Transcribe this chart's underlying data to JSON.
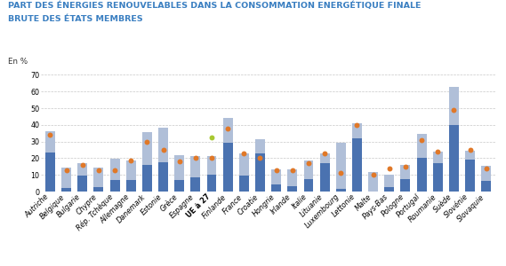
{
  "title_line1": "PART DES ÉNERGIES RENOUVELABLES DANS LA CONSOMMATION ENERGÉTIQUE FINALE",
  "title_line2": "BRUTE DES ÉTATS MEMBRES",
  "ylabel": "En %",
  "categories": [
    "Autriche",
    "Belgique",
    "Bulgarie",
    "Chypre",
    "Rép. Tchèque",
    "Allemagne",
    "Danemark",
    "Estonie",
    "Grèce",
    "Espagne",
    "UE à 27",
    "Finlande",
    "France",
    "Croatie",
    "Hongrie",
    "Irlande",
    "Italie",
    "Lituanie",
    "Luxembourg",
    "Lettonie",
    "Malte",
    "Pays-Bas",
    "Pologne",
    "Portugal",
    "Roumanie",
    "Suède",
    "Slovénie",
    "Slovaquie"
  ],
  "values_2005": [
    23.3,
    2.2,
    9.4,
    2.9,
    6.8,
    7.0,
    16.0,
    17.5,
    7.0,
    8.7,
    10.0,
    29.0,
    9.5,
    23.0,
    4.3,
    3.1,
    7.7,
    17.0,
    1.4,
    32.0,
    0.0,
    2.4,
    7.2,
    20.0,
    17.0,
    40.0,
    19.0,
    6.4
  ],
  "values_2021_extra": [
    13.0,
    12.0,
    7.5,
    11.2,
    13.0,
    11.5,
    19.5,
    21.0,
    15.0,
    12.5,
    11.5,
    15.0,
    13.5,
    8.5,
    9.0,
    10.0,
    11.0,
    6.0,
    28.0,
    9.0,
    11.5,
    7.5,
    9.0,
    14.5,
    7.0,
    23.0,
    5.5,
    9.0
  ],
  "values_obj2020": [
    34.0,
    13.0,
    16.0,
    13.0,
    13.0,
    18.5,
    30.0,
    25.0,
    18.0,
    20.0,
    20.0,
    38.0,
    23.0,
    20.0,
    13.0,
    13.0,
    17.0,
    23.0,
    11.0,
    40.0,
    10.0,
    14.0,
    15.0,
    31.0,
    24.0,
    49.0,
    25.0,
    14.0
  ],
  "values_obj2030_UE": [
    null,
    null,
    null,
    null,
    null,
    null,
    null,
    null,
    null,
    null,
    32.5,
    null,
    null,
    null,
    null,
    null,
    null,
    null,
    null,
    null,
    null,
    null,
    null,
    null,
    null,
    null,
    null,
    null
  ],
  "color_2005": "#4a72b0",
  "color_2021": "#b0bfd8",
  "color_obj2020": "#e07828",
  "color_obj2030": "#a8c832",
  "ylim": [
    0,
    75
  ],
  "yticks": [
    0,
    10,
    20,
    30,
    40,
    50,
    60,
    70
  ],
  "background_color": "#ffffff",
  "title_color": "#3a7fc1",
  "title_fontsize": 6.8,
  "axis_fontsize": 5.8,
  "legend_fontsize": 6.2,
  "bar_width": 0.6
}
